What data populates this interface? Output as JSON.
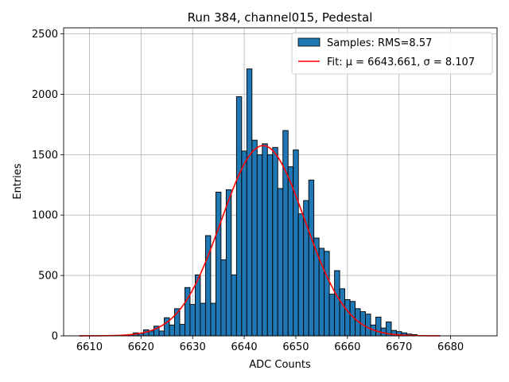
{
  "chart_data": {
    "type": "bar",
    "title": "Run 384, channel015, Pedestal",
    "xlabel": "ADC Counts",
    "ylabel": "Entries",
    "xlim": [
      6605,
      6689
    ],
    "ylim": [
      0,
      2550
    ],
    "xticks": [
      6610,
      6620,
      6630,
      6640,
      6650,
      6660,
      6670,
      6680
    ],
    "yticks": [
      0,
      500,
      1000,
      1500,
      2000,
      2500
    ],
    "grid": true,
    "legend_position": "top-right",
    "bin_width": 1,
    "series": [
      {
        "name": "Samples: RMS=8.57",
        "kind": "histogram",
        "color": "#1f77b4",
        "edgecolor": "#000000",
        "x": [
          6617,
          6618,
          6619,
          6620,
          6621,
          6622,
          6623,
          6624,
          6625,
          6626,
          6627,
          6628,
          6629,
          6630,
          6631,
          6632,
          6633,
          6634,
          6635,
          6636,
          6637,
          6638,
          6639,
          6640,
          6641,
          6642,
          6643,
          6644,
          6645,
          6646,
          6647,
          6648,
          6649,
          6650,
          6651,
          6652,
          6653,
          6654,
          6655,
          6656,
          6657,
          6658,
          6659,
          6660,
          6661,
          6662,
          6663,
          6664,
          6665,
          6666,
          6667,
          6668,
          6669,
          6670,
          6671,
          6672,
          6673
        ],
        "values": [
          5,
          10,
          25,
          20,
          50,
          40,
          80,
          40,
          150,
          90,
          225,
          95,
          400,
          260,
          505,
          270,
          830,
          270,
          1190,
          630,
          1210,
          505,
          1980,
          1530,
          2210,
          1620,
          1500,
          1590,
          1500,
          1560,
          1220,
          1700,
          1400,
          1540,
          1010,
          1120,
          1290,
          810,
          725,
          700,
          345,
          540,
          390,
          300,
          285,
          225,
          200,
          180,
          90,
          155,
          65,
          115,
          45,
          35,
          25,
          15,
          10
        ]
      },
      {
        "name": "Fit: μ = 6643.661, σ = 8.107",
        "kind": "gaussian_fit",
        "color": "#ff0000",
        "mu": 6643.661,
        "sigma": 8.107,
        "amplitude": 1575,
        "range": [
          6608,
          6678
        ]
      }
    ]
  }
}
